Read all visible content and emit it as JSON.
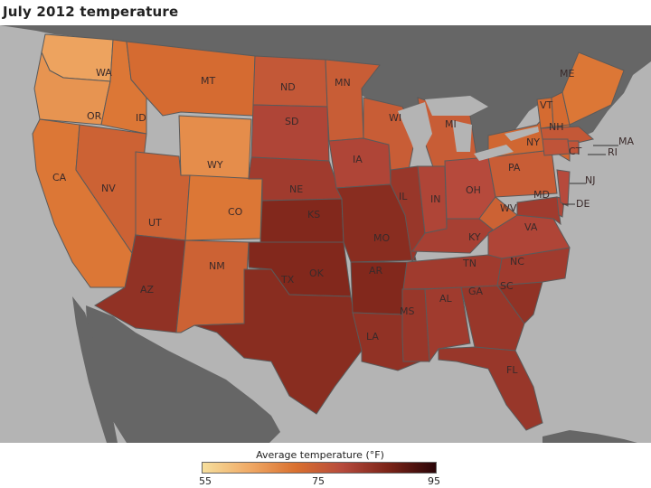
{
  "title": "July 2012 temperature",
  "legend": {
    "title": "Average temperature (°F)",
    "min_label": "55",
    "mid_label": "75",
    "max_label": "95",
    "color_stops": [
      "#f6df9d",
      "#f0aa66",
      "#d9702f",
      "#b64a3c",
      "#7a2317",
      "#2a0508"
    ]
  },
  "colors": {
    "water": "#b4b4b4",
    "land_outside": "#666666",
    "border": "#5a5a5a"
  },
  "states": [
    {
      "code": "WA",
      "label": "WA",
      "temp": 64
    },
    {
      "code": "OR",
      "label": "OR",
      "temp": 66
    },
    {
      "code": "CA",
      "label": "CA",
      "temp": 70
    },
    {
      "code": "ID",
      "label": "ID",
      "temp": 70
    },
    {
      "code": "NV",
      "label": "NV",
      "temp": 74
    },
    {
      "code": "MT",
      "label": "MT",
      "temp": 72
    },
    {
      "code": "WY",
      "label": "WY",
      "temp": 67
    },
    {
      "code": "UT",
      "label": "UT",
      "temp": 74
    },
    {
      "code": "AZ",
      "label": "AZ",
      "temp": 84
    },
    {
      "code": "CO",
      "label": "CO",
      "temp": 70
    },
    {
      "code": "NM",
      "label": "NM",
      "temp": 74
    },
    {
      "code": "ND",
      "label": "ND",
      "temp": 76
    },
    {
      "code": "SD",
      "label": "SD",
      "temp": 80
    },
    {
      "code": "NE",
      "label": "NE",
      "temp": 82
    },
    {
      "code": "KS",
      "label": "KS",
      "temp": 86
    },
    {
      "code": "OK",
      "label": "OK",
      "temp": 86
    },
    {
      "code": "TX",
      "label": "TX",
      "temp": 85
    },
    {
      "code": "MN",
      "label": "MN",
      "temp": 75
    },
    {
      "code": "IA",
      "label": "IA",
      "temp": 80
    },
    {
      "code": "MO",
      "label": "MO",
      "temp": 85
    },
    {
      "code": "AR",
      "label": "AR",
      "temp": 86
    },
    {
      "code": "LA",
      "label": "LA",
      "temp": 84
    },
    {
      "code": "WI",
      "label": "WI",
      "temp": 75
    },
    {
      "code": "IL",
      "label": "IL",
      "temp": 83
    },
    {
      "code": "MI",
      "label": "MI",
      "temp": 75
    },
    {
      "code": "IN",
      "label": "IN",
      "temp": 80
    },
    {
      "code": "OH",
      "label": "OH",
      "temp": 79
    },
    {
      "code": "KY",
      "label": "KY",
      "temp": 81
    },
    {
      "code": "TN",
      "label": "TN",
      "temp": 82
    },
    {
      "code": "MS",
      "label": "MS",
      "temp": 83
    },
    {
      "code": "AL",
      "label": "AL",
      "temp": 82
    },
    {
      "code": "GA",
      "label": "GA",
      "temp": 83
    },
    {
      "code": "FL",
      "label": "FL",
      "temp": 83
    },
    {
      "code": "SC",
      "label": "SC",
      "temp": 84
    },
    {
      "code": "NC",
      "label": "NC",
      "temp": 82
    },
    {
      "code": "VA",
      "label": "VA",
      "temp": 80
    },
    {
      "code": "WV",
      "label": "WV",
      "temp": 74
    },
    {
      "code": "MD",
      "label": "MD",
      "temp": 82
    },
    {
      "code": "DE",
      "label": "DE",
      "temp": 80
    },
    {
      "code": "NJ",
      "label": "NJ",
      "temp": 79
    },
    {
      "code": "PA",
      "label": "PA",
      "temp": 75
    },
    {
      "code": "NY",
      "label": "NY",
      "temp": 73
    },
    {
      "code": "VT",
      "label": "VT",
      "temp": 72
    },
    {
      "code": "NH",
      "label": "NH",
      "temp": 72
    },
    {
      "code": "ME",
      "label": "ME",
      "temp": 70
    },
    {
      "code": "MA",
      "label": "MA",
      "temp": 76
    },
    {
      "code": "CT",
      "label": "CT",
      "temp": 77
    },
    {
      "code": "RI",
      "label": "RI",
      "temp": 77
    }
  ]
}
